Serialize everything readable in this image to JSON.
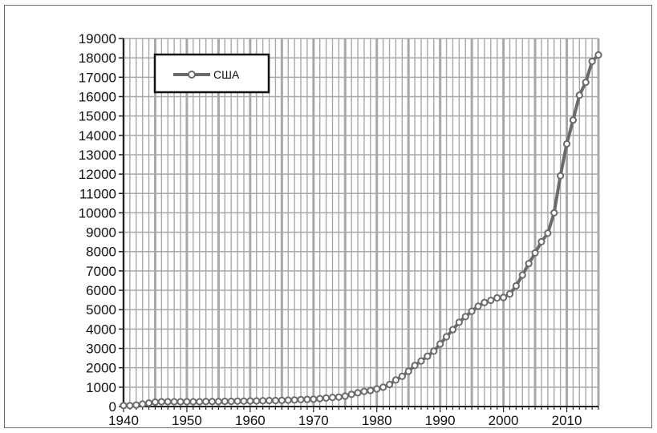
{
  "chart_data": {
    "type": "line",
    "title": "",
    "xlabel": "",
    "ylabel": "",
    "xlim": [
      1940,
      2015
    ],
    "ylim": [
      0,
      19000
    ],
    "x_ticks": [
      1940,
      1950,
      1960,
      1970,
      1980,
      1990,
      2000,
      2010
    ],
    "y_ticks": [
      0,
      1000,
      2000,
      3000,
      4000,
      5000,
      6000,
      7000,
      8000,
      9000,
      10000,
      11000,
      12000,
      13000,
      14000,
      15000,
      16000,
      17000,
      18000,
      19000
    ],
    "grid": true,
    "legend_position": "top-left",
    "colors": {
      "line": "#6b6b6b",
      "marker_fill": "#ffffff",
      "grid": "#a8a8a8",
      "axis": "#222222"
    },
    "series": [
      {
        "name": "США",
        "x": [
          1940,
          1941,
          1942,
          1943,
          1944,
          1945,
          1946,
          1947,
          1948,
          1949,
          1950,
          1951,
          1952,
          1953,
          1954,
          1955,
          1956,
          1957,
          1958,
          1959,
          1960,
          1961,
          1962,
          1963,
          1964,
          1965,
          1966,
          1967,
          1968,
          1969,
          1970,
          1971,
          1972,
          1973,
          1974,
          1975,
          1976,
          1977,
          1978,
          1979,
          1980,
          1981,
          1982,
          1983,
          1984,
          1985,
          1986,
          1987,
          1988,
          1989,
          1990,
          1991,
          1992,
          1993,
          1994,
          1995,
          1996,
          1997,
          1998,
          1999,
          2000,
          2001,
          2002,
          2003,
          2004,
          2005,
          2006,
          2007,
          2008,
          2009,
          2010,
          2011,
          2012,
          2013,
          2014,
          2015
        ],
        "values": [
          50,
          50,
          80,
          130,
          180,
          230,
          250,
          250,
          250,
          250,
          250,
          250,
          250,
          260,
          260,
          260,
          270,
          270,
          280,
          280,
          290,
          290,
          300,
          310,
          310,
          320,
          330,
          340,
          360,
          370,
          380,
          410,
          440,
          470,
          490,
          540,
          630,
          710,
          780,
          830,
          910,
          1000,
          1140,
          1370,
          1560,
          1820,
          2120,
          2350,
          2600,
          2860,
          3230,
          3600,
          3970,
          4350,
          4640,
          4920,
          5180,
          5370,
          5480,
          5610,
          5630,
          5810,
          6230,
          6790,
          7380,
          7930,
          8510,
          8950,
          10000,
          11910,
          13560,
          14790,
          16070,
          16740,
          17820,
          18150
        ]
      }
    ]
  }
}
